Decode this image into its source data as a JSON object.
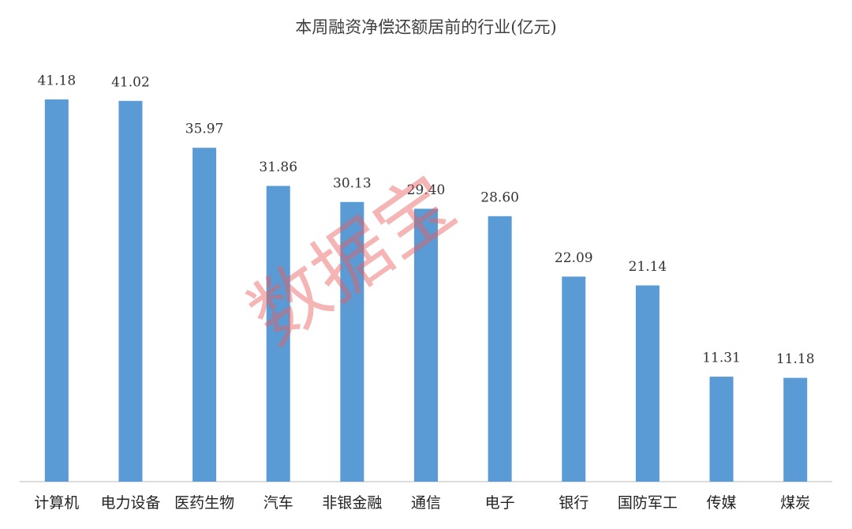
{
  "chart_data": {
    "type": "bar",
    "title": "本周融资净偿还额居前的行业(亿元)",
    "categories": [
      "计算机",
      "电力设备",
      "医药生物",
      "汽车",
      "非银金融",
      "通信",
      "电子",
      "银行",
      "国防军工",
      "传媒",
      "煤炭"
    ],
    "values": [
      41.18,
      41.02,
      35.97,
      31.86,
      30.13,
      29.4,
      28.6,
      22.09,
      21.14,
      11.31,
      11.18
    ],
    "value_labels": [
      "41.18",
      "41.02",
      "35.97",
      "31.86",
      "30.13",
      "29.40",
      "28.60",
      "22.09",
      "21.14",
      "11.31",
      "11.18"
    ],
    "color": "#5b9bd5",
    "ylim": [
      0,
      45
    ],
    "watermark": "数据宝"
  }
}
